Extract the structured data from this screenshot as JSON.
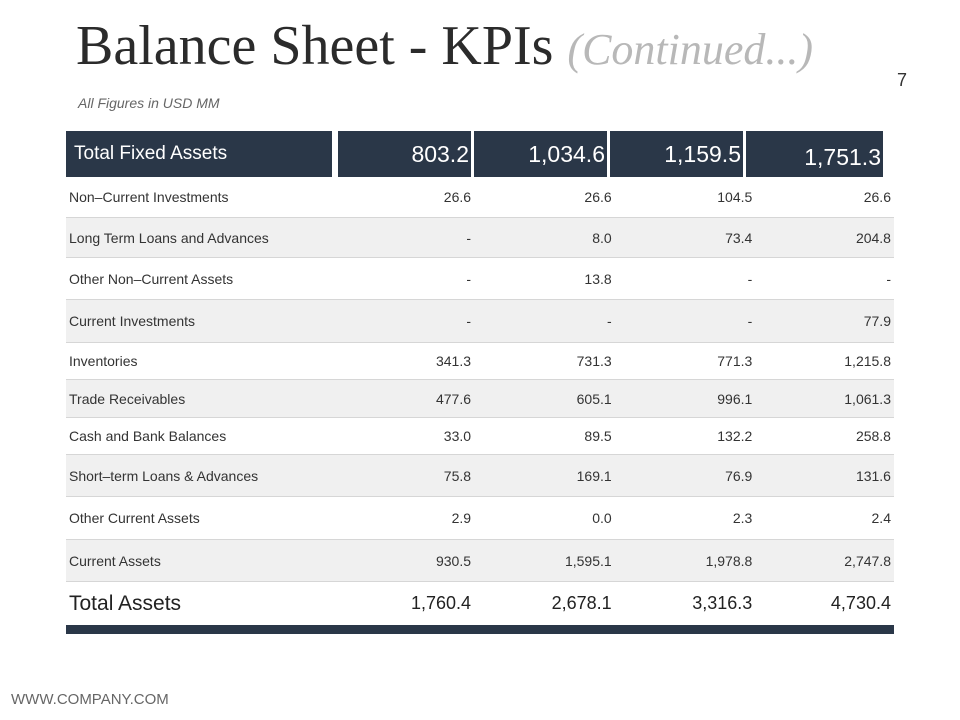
{
  "slide": {
    "title_main": "Balance Sheet - KPIs",
    "title_continued": "(Continued...)",
    "page_number": "7",
    "subtitle": "All Figures in USD MM",
    "footer": "WWW.COMPANY.COM"
  },
  "table": {
    "header": {
      "label": "Total Fixed Assets",
      "values": [
        "803.2",
        "1,034.6",
        "1,159.5",
        "1,751.3"
      ]
    },
    "rows": [
      {
        "label": "Non–Current Investments",
        "values": [
          "26.6",
          "26.6",
          "104.5",
          "26.6"
        ]
      },
      {
        "label": "Long Term Loans and Advances",
        "values": [
          "-",
          "8.0",
          "73.4",
          "204.8"
        ]
      },
      {
        "label": "Other Non–Current Assets",
        "values": [
          "-",
          "13.8",
          "-",
          "-"
        ]
      },
      {
        "label": "Current Investments",
        "values": [
          "-",
          "-",
          "-",
          "77.9"
        ]
      },
      {
        "label": "Inventories",
        "values": [
          "341.3",
          "731.3",
          "771.3",
          "1,215.8"
        ]
      },
      {
        "label": "Trade Receivables",
        "values": [
          "477.6",
          "605.1",
          "996.1",
          "1,061.3"
        ]
      },
      {
        "label": "Cash and Bank Balances",
        "values": [
          "33.0",
          "89.5",
          "132.2",
          "258.8"
        ]
      },
      {
        "label": "Short–term Loans & Advances",
        "values": [
          "75.8",
          "169.1",
          "76.9",
          "131.6"
        ]
      },
      {
        "label": "Other Current Assets",
        "values": [
          "2.9",
          "0.0",
          "2.3",
          "2.4"
        ]
      },
      {
        "label": "Current Assets",
        "values": [
          "930.5",
          "1,595.1",
          "1,978.8",
          "2,747.8"
        ]
      }
    ],
    "total": {
      "label": "Total Assets",
      "values": [
        "1,760.4",
        "2,678.1",
        "3,316.3",
        "4,730.4"
      ]
    }
  }
}
